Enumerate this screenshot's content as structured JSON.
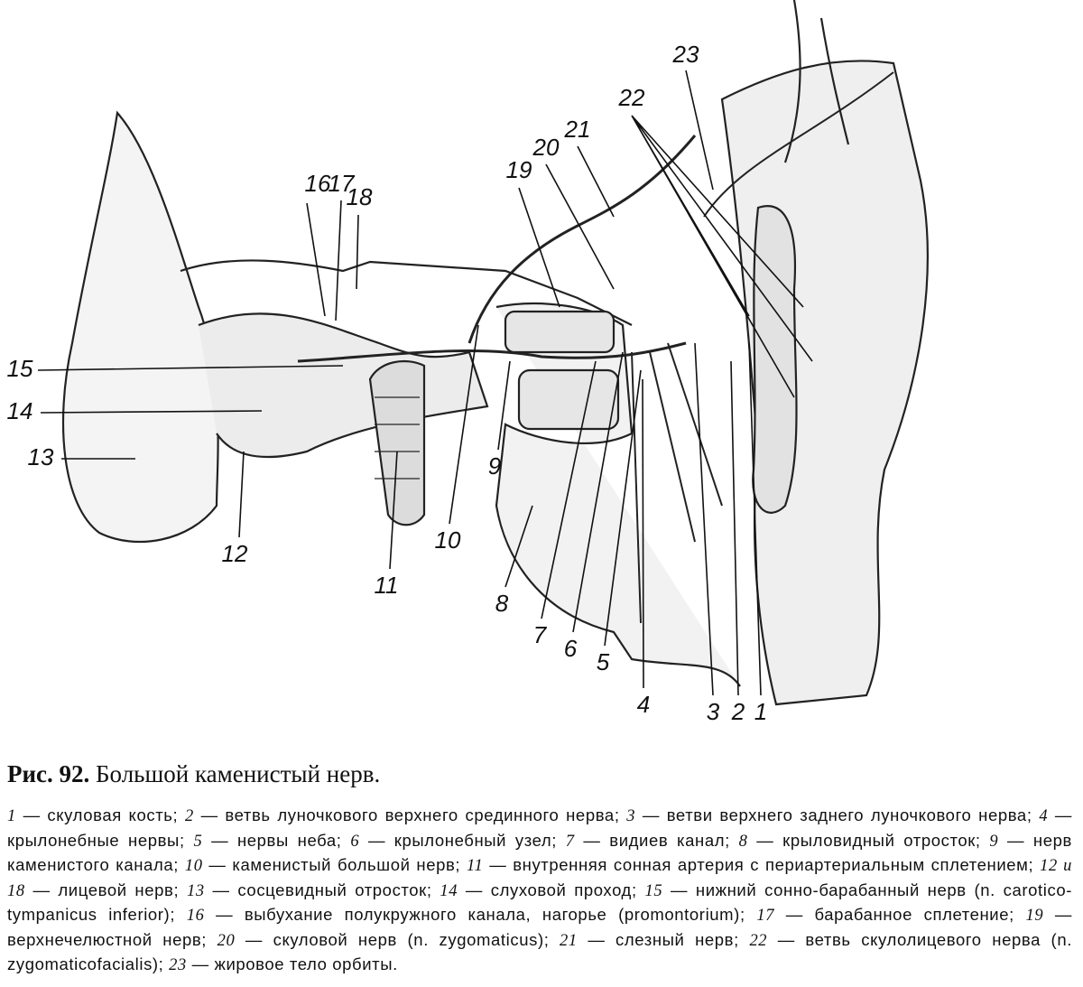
{
  "figure": {
    "labels": [
      "23",
      "22",
      "21",
      "20",
      "19",
      "16",
      "17",
      "18",
      "15",
      "14",
      "13",
      "12",
      "11",
      "10",
      "9",
      "8",
      "7",
      "6",
      "5",
      "4",
      "3",
      "2",
      "1"
    ]
  },
  "caption": {
    "number": "Рис. 92.",
    "title": "Большой каменистый нерв.",
    "items": [
      {
        "number": "1",
        "text": "— скуловая кость;"
      },
      {
        "number": "2",
        "text": "— ветвь луночкового верхнего срединного нерва;"
      },
      {
        "number": "3",
        "text": "— ветви верхнего заднего луночкового нерва;"
      },
      {
        "number": "4",
        "text": "— крылонебные нервы;"
      },
      {
        "number": "5",
        "text": "— нервы неба;"
      },
      {
        "number": "6",
        "text": "— крылонебный узел;"
      },
      {
        "number": "7",
        "text": "— видиев канал;"
      },
      {
        "number": "8",
        "text": "— крыловидный отросток;"
      },
      {
        "number": "9",
        "text": "— нерв каменистого канала;"
      },
      {
        "number": "10",
        "text": "— каменистый большой нерв;"
      },
      {
        "number": "11",
        "text": "— внутренняя сонная артерия с периартериальным сплетением;"
      },
      {
        "number": "12 и 18",
        "text": "— лицевой нерв;"
      },
      {
        "number": "13",
        "text": "— сосцевидный отросток;"
      },
      {
        "number": "14",
        "text": "— слуховой проход;"
      },
      {
        "number": "15",
        "text": "— нижний сонно-барабанный нерв (n. carotico-tympanicus inferior);"
      },
      {
        "number": "16",
        "text": "— выбухание полукружного канала, нагорье (promontorium);"
      },
      {
        "number": "17",
        "text": "— барабанное сплетение;"
      },
      {
        "number": "19",
        "text": "— верхнечелюстной нерв;"
      },
      {
        "number": "20",
        "text": "— скуловой нерв (n. zygomaticus);"
      },
      {
        "number": "21",
        "text": "— слезный нерв;"
      },
      {
        "number": "22",
        "text": "— ветвь скулолицевого нерва (n. zygomaticofacialis);"
      },
      {
        "number": "23",
        "text": "— жировое тело орбиты."
      }
    ]
  }
}
